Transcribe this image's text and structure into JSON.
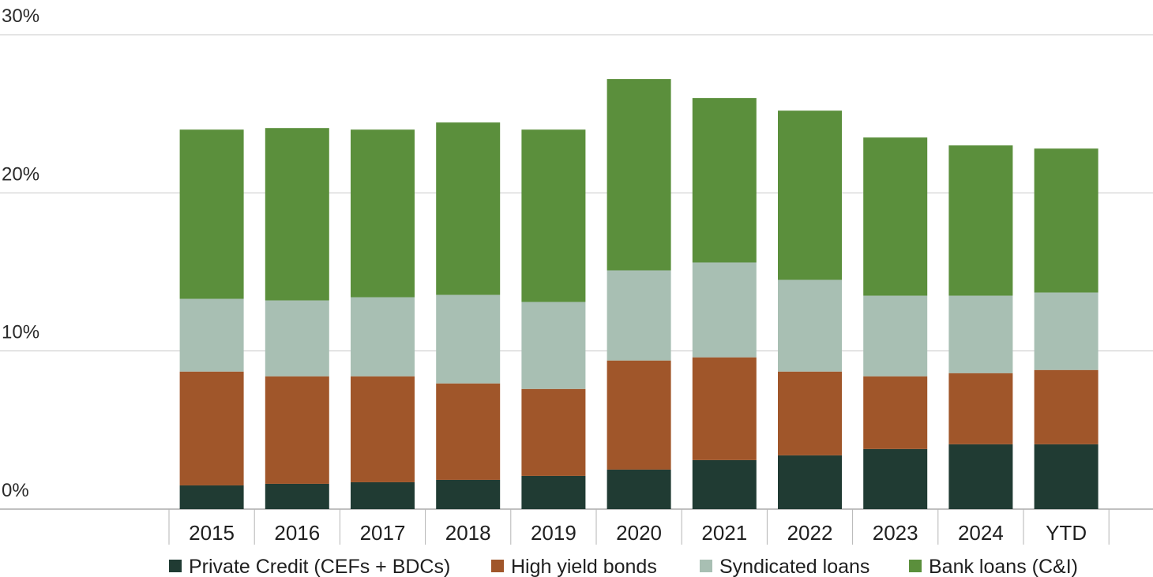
{
  "chart_data": {
    "type": "bar",
    "stacked": true,
    "title": "",
    "xlabel": "",
    "ylabel": "",
    "ylim": [
      0,
      30
    ],
    "y_ticks": [
      {
        "value": 0,
        "label": "0%"
      },
      {
        "value": 10,
        "label": "10%"
      },
      {
        "value": 20,
        "label": "20%"
      },
      {
        "value": 30,
        "label": "30%"
      }
    ],
    "grid": true,
    "legend_position": "bottom",
    "categories": [
      "2015",
      "2016",
      "2017",
      "2018",
      "2019",
      "2020",
      "2021",
      "2022",
      "2023",
      "2024",
      "YTD"
    ],
    "series": [
      {
        "name": "Private Credit (CEFs + BDCs)",
        "color": "#203b33",
        "values": [
          1.5,
          1.6,
          1.7,
          1.85,
          2.1,
          2.5,
          3.1,
          3.4,
          3.8,
          4.1,
          4.1
        ]
      },
      {
        "name": "High yield bonds",
        "color": "#a0562a",
        "values": [
          7.2,
          6.8,
          6.7,
          6.1,
          5.5,
          6.9,
          6.5,
          5.3,
          4.6,
          4.5,
          4.7
        ]
      },
      {
        "name": "Syndicated loans",
        "color": "#a8bfb3",
        "values": [
          4.6,
          4.8,
          5.0,
          5.6,
          5.5,
          5.7,
          6.0,
          5.8,
          5.1,
          4.9,
          4.9
        ]
      },
      {
        "name": "Bank loans (C&I)",
        "color": "#5b8f3c",
        "values": [
          10.7,
          10.9,
          10.6,
          10.9,
          10.9,
          12.1,
          10.4,
          10.7,
          10.0,
          9.5,
          9.1
        ]
      }
    ]
  }
}
